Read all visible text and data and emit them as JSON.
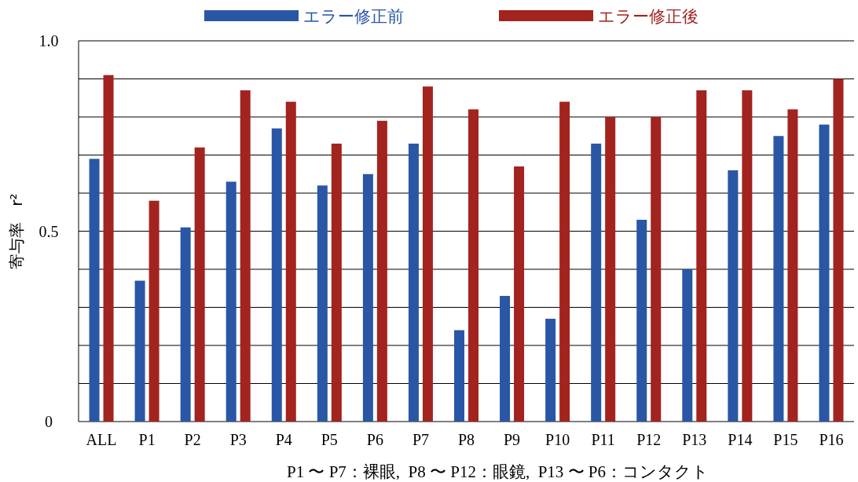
{
  "chart_data": {
    "type": "bar",
    "xlabel": "P1 〜 P7：裸眼,  P8 〜 P12：眼鏡,  P13 〜 P6：コンタクト",
    "ylabel": "寄与率　r²",
    "categories": [
      "ALL",
      "P1",
      "P2",
      "P3",
      "P4",
      "P5",
      "P6",
      "P7",
      "P8",
      "P9",
      "P10",
      "P11",
      "P12",
      "P13",
      "P14",
      "P15",
      "P16"
    ],
    "series": [
      {
        "name": "エラー修正前",
        "color": "#2a56a6",
        "values": [
          0.69,
          0.37,
          0.51,
          0.63,
          0.77,
          0.62,
          0.65,
          0.73,
          0.24,
          0.33,
          0.27,
          0.73,
          0.53,
          0.4,
          0.66,
          0.75,
          0.78
        ]
      },
      {
        "name": "エラー修正後",
        "color": "#a3231f",
        "values": [
          0.91,
          0.58,
          0.72,
          0.87,
          0.84,
          0.73,
          0.79,
          0.88,
          0.82,
          0.67,
          0.84,
          0.8,
          0.8,
          0.87,
          0.87,
          0.82,
          0.9
        ]
      }
    ],
    "ylim": [
      0,
      1
    ],
    "yticks": [
      0,
      {
        "value": 0.1,
        "label": null
      },
      {
        "value": 0.2,
        "label": null
      },
      {
        "value": 0.3,
        "label": null
      },
      {
        "value": 0.4,
        "label": null
      },
      {
        "value": 0.5,
        "label": "0.5"
      },
      {
        "value": 0.6,
        "label": null
      },
      {
        "value": 0.7,
        "label": null
      },
      {
        "value": 0.8,
        "label": null
      },
      {
        "value": 0.9,
        "label": null
      },
      {
        "value": 1,
        "label": "1.0"
      }
    ],
    "grid": "y",
    "legend": "top"
  }
}
